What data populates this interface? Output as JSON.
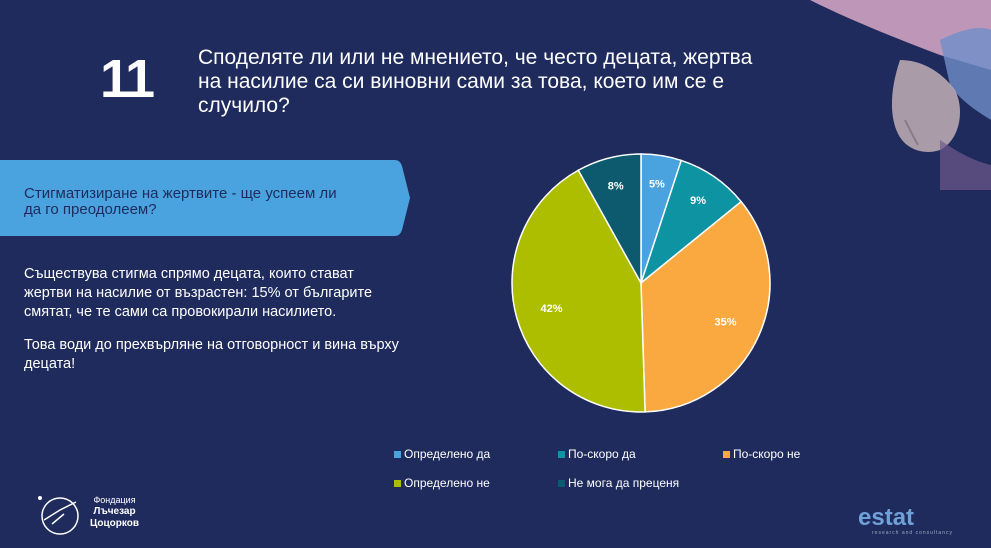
{
  "slide": {
    "number": "11",
    "question": "Споделяте ли или не мнението, че често децата, жертва на насилие са си виновни сами за това, което им се е случило?"
  },
  "banner": {
    "text": "Стигматизиране на жертвите - ще успеем ли да го преодолеем?"
  },
  "body": {
    "paragraph1": "Съществува стигма спрямо децата, които стават жертви на насилие от възрастен: 15% от българите смятат, че те сами са провокирали насилието.",
    "paragraph2": "Това води до прехвърляне на отговорност и вина върху децата!"
  },
  "logos": {
    "left_line1": "Фондация",
    "left_line2": "Лъчезар",
    "left_line3": "Цоцорков",
    "right_name": "estat",
    "right_sub": "research and consultancy"
  },
  "chart_data": {
    "type": "pie",
    "categories": [
      "Определено да",
      "По-скоро да",
      "По-скоро не",
      "Определено не",
      "Не мога да преценя"
    ],
    "values": [
      5,
      9,
      35,
      42,
      8
    ],
    "labels": [
      "5%",
      "9%",
      "35%",
      "42%",
      "8%"
    ],
    "colors": [
      "#4aa3df",
      "#0e93a3",
      "#f9a940",
      "#adbe00",
      "#0d5a6e"
    ],
    "legend_position": "bottom"
  }
}
